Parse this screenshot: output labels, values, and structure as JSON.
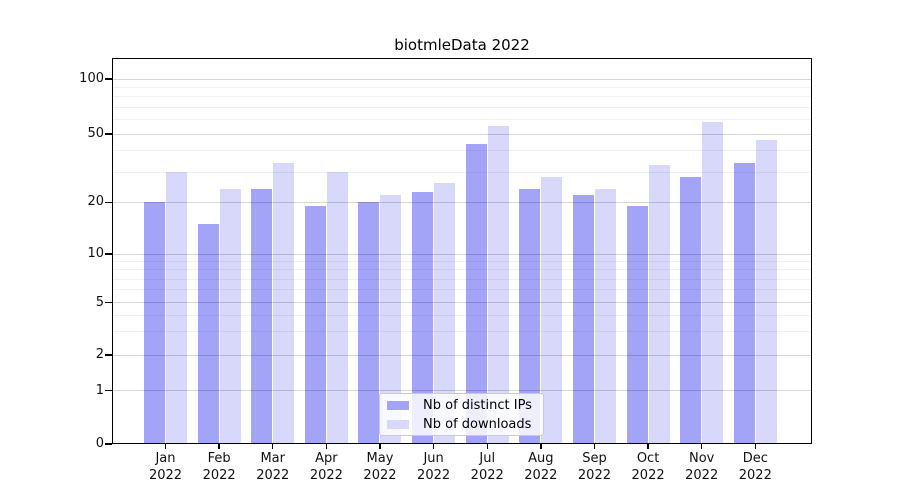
{
  "chart_data": {
    "type": "bar",
    "title": "biotmleData 2022",
    "categories": [
      "Jan 2022",
      "Feb 2022",
      "Mar 2022",
      "Apr 2022",
      "May 2022",
      "Jun 2022",
      "Jul 2022",
      "Aug 2022",
      "Sep 2022",
      "Oct 2022",
      "Nov 2022",
      "Dec 2022"
    ],
    "series": [
      {
        "name": "Nb of distinct IPs",
        "color": "#a3a3f8",
        "values": [
          20,
          15,
          24,
          19,
          20,
          23,
          44,
          24,
          22,
          19,
          28,
          34
        ]
      },
      {
        "name": "Nb of downloads",
        "color": "#d8d8fb",
        "values": [
          30,
          24,
          34,
          30,
          22,
          26,
          55,
          28,
          24,
          33,
          58,
          46
        ]
      }
    ],
    "yscale": "symlog",
    "ylim": [
      0,
      130
    ],
    "y_major_ticks": [
      0,
      1,
      2,
      5,
      10,
      20,
      50,
      100
    ],
    "y_minor_ticks": [
      3,
      4,
      6,
      7,
      8,
      9,
      30,
      40,
      60,
      70,
      80,
      90
    ],
    "grid": true,
    "grid_above_bars": true,
    "legend_position": "lower center",
    "colors": {
      "axis": "#000000",
      "text": "#111111",
      "grid_major": "#d6d6d6",
      "grid_minor": "#ececec",
      "legend_border": "#cbcbcb"
    }
  }
}
